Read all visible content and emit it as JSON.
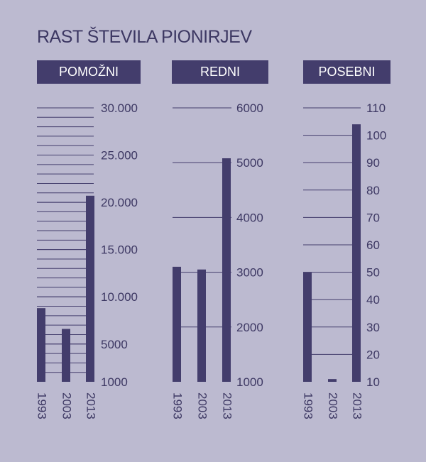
{
  "title": "RAST ŠTEVILA PIONIRJEV",
  "colors": {
    "background": "#bcbad0",
    "bar": "#433d6c",
    "grid": "#433d6c",
    "text": "#3d3863"
  },
  "chart_data": [
    {
      "type": "bar",
      "title": "POMOŽNI",
      "categories": [
        "1993",
        "2003",
        "2013"
      ],
      "values": [
        8800,
        6600,
        20700
      ],
      "ylim": [
        1000,
        30000
      ],
      "yticks": [
        "30.000",
        "25.000",
        "20.000",
        "15.000",
        "10.000",
        "5000",
        "1000"
      ],
      "tick_values": [
        30000,
        25000,
        20000,
        15000,
        10000,
        5000,
        1000
      ]
    },
    {
      "type": "bar",
      "title": "REDNI",
      "categories": [
        "1993",
        "2003",
        "2013"
      ],
      "values": [
        3100,
        3050,
        5080
      ],
      "ylim": [
        1000,
        6000
      ],
      "yticks": [
        "6000",
        "5000",
        "4000",
        "3000",
        "2000",
        "1000"
      ],
      "tick_values": [
        6000,
        5000,
        4000,
        3000,
        2000,
        1000
      ]
    },
    {
      "type": "bar",
      "title": "POSEBNI",
      "categories": [
        "1993",
        "2003",
        "2013"
      ],
      "values": [
        50,
        11,
        104
      ],
      "ylim": [
        10,
        110
      ],
      "yticks": [
        "110",
        "100",
        "90",
        "80",
        "70",
        "60",
        "50",
        "40",
        "30",
        "20",
        "10"
      ],
      "tick_values": [
        110,
        100,
        90,
        80,
        70,
        60,
        50,
        40,
        30,
        20,
        10
      ]
    }
  ]
}
